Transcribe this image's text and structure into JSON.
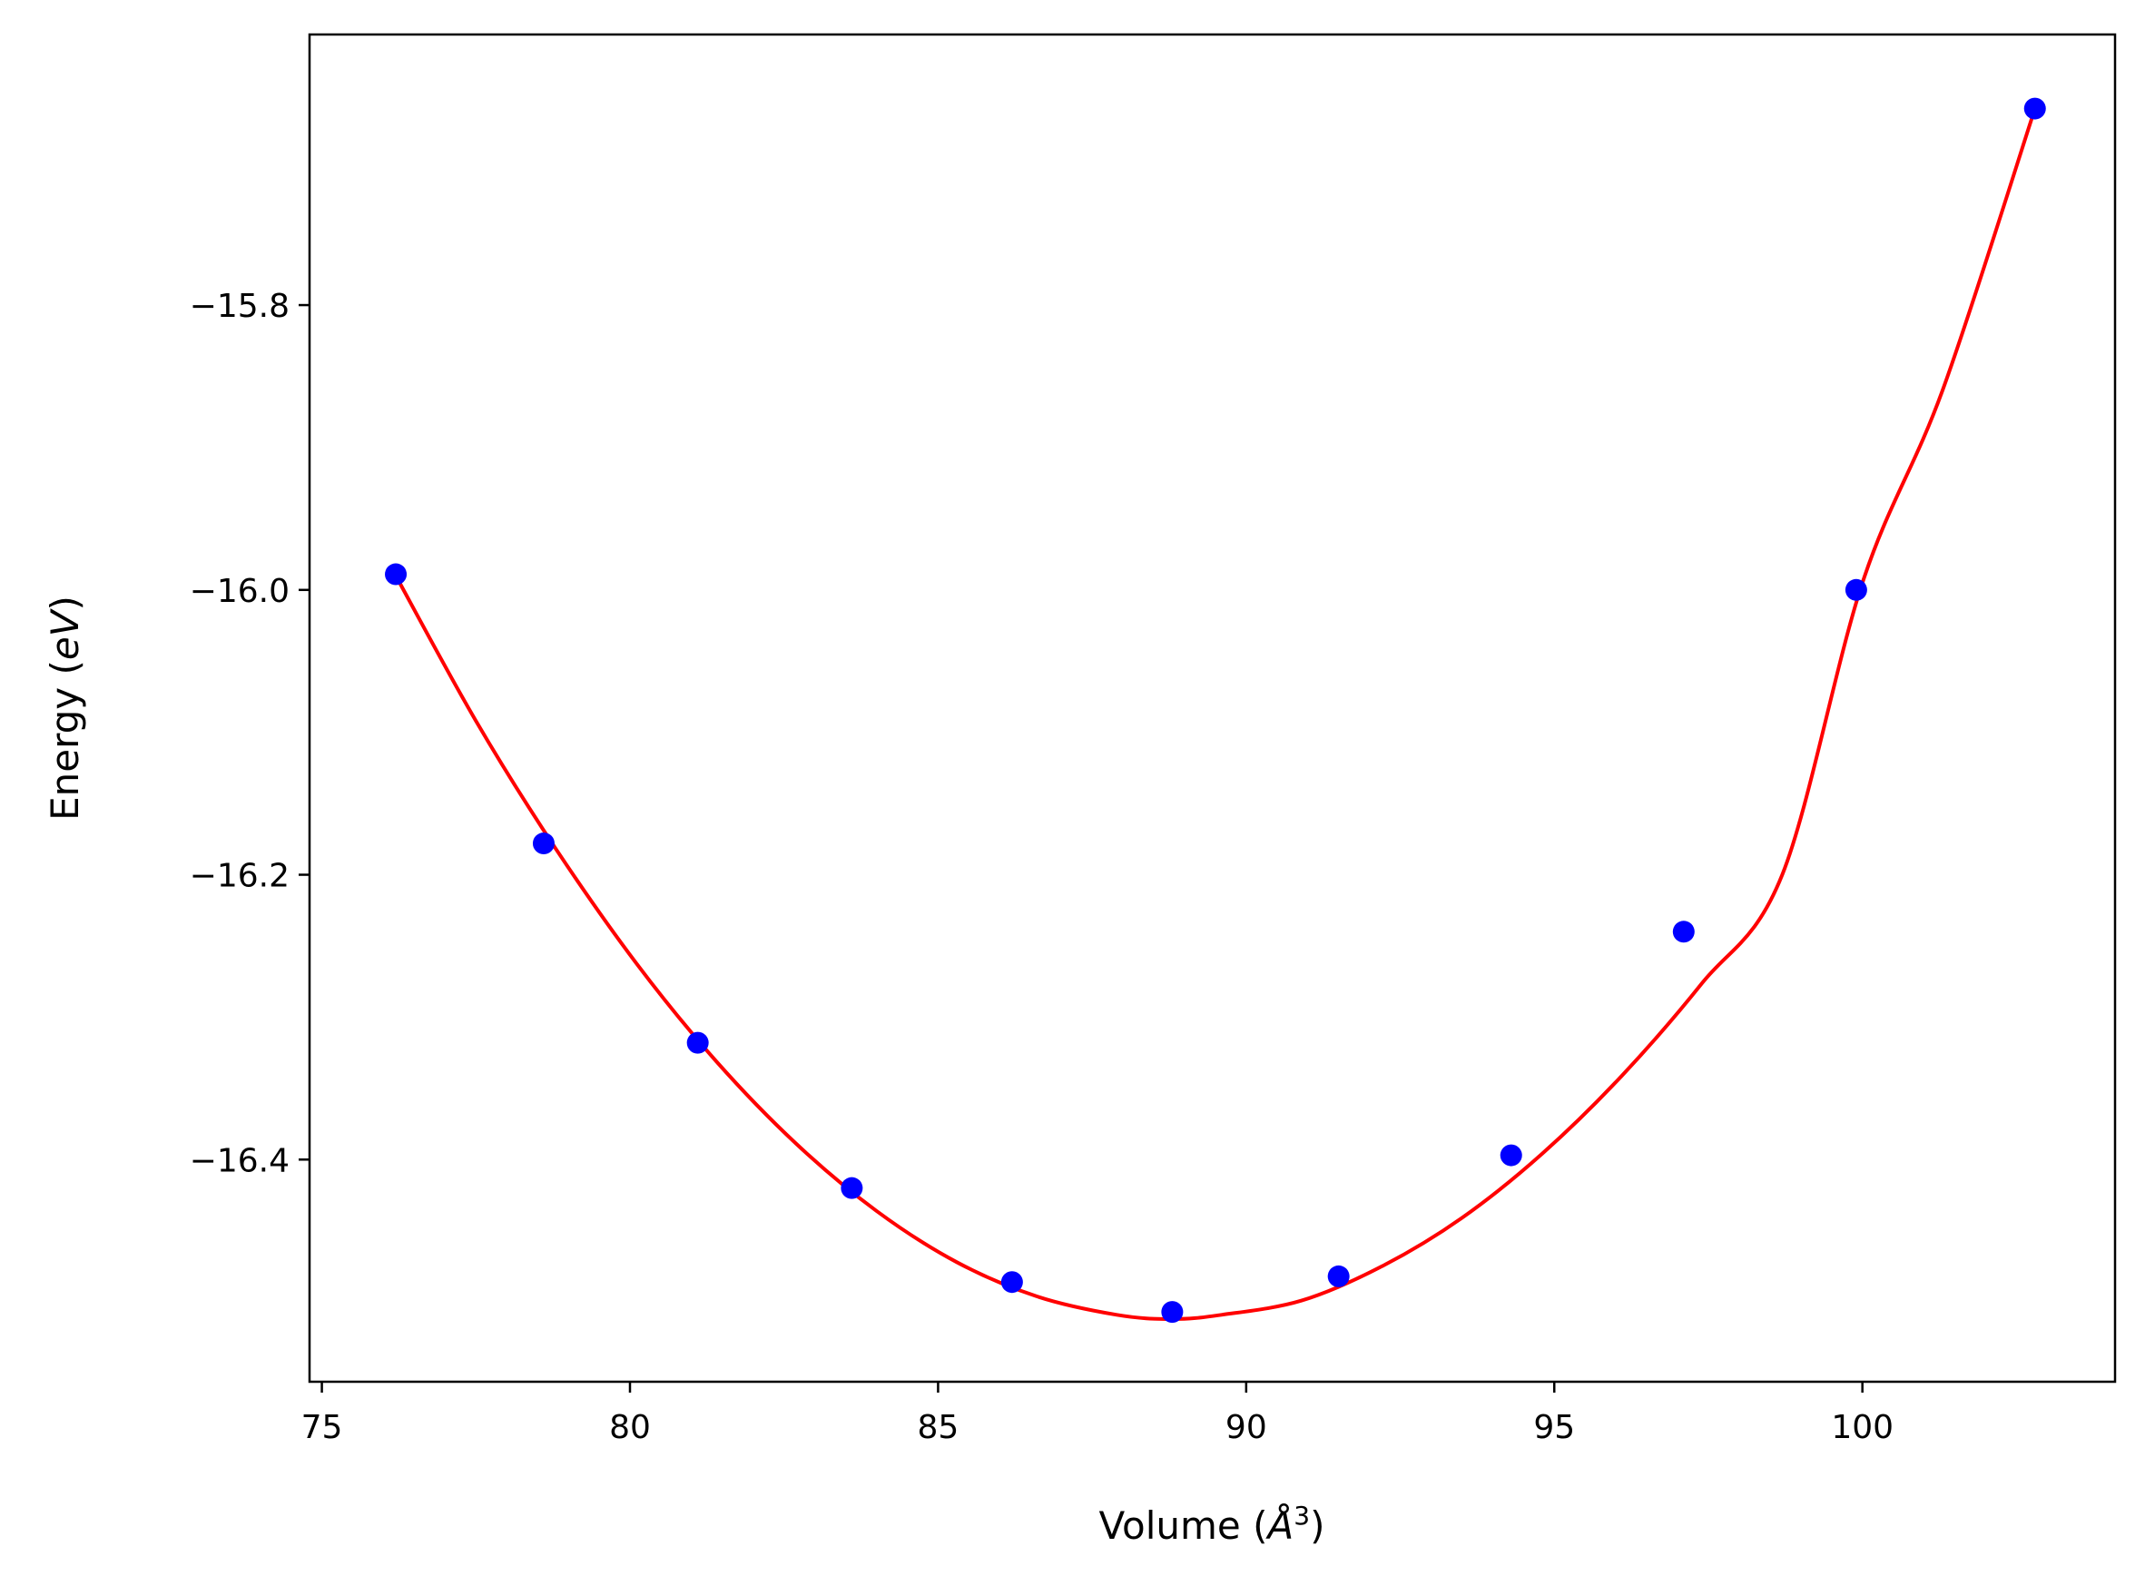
{
  "chart_data": {
    "type": "scatter",
    "xlabel": "Volume (",
    "xlabel_unit": "Å",
    "xlabel_exp": "3",
    "xlabel_close": ")",
    "ylabel_prefix": "Energy (",
    "ylabel_unit": "eV",
    "ylabel_suffix": ")",
    "xlim": [
      74.8,
      104.1
    ],
    "ylim": [
      -16.556,
      -15.61
    ],
    "xticks": [
      75,
      80,
      85,
      90,
      95,
      100
    ],
    "xtick_labels": [
      "75",
      "80",
      "85",
      "90",
      "95",
      "100"
    ],
    "yticks": [
      -15.8,
      -16.0,
      -16.2,
      -16.4
    ],
    "ytick_labels": [
      "−15.8",
      "−16.0",
      "−16.2",
      "−16.4"
    ],
    "grid": false,
    "series": [
      {
        "kind": "points",
        "color": "#0000ff",
        "x": [
          76.2,
          78.6,
          81.1,
          83.6,
          86.2,
          88.8,
          91.5,
          94.3,
          97.1,
          99.9,
          102.8
        ],
        "y": [
          -15.989,
          -16.178,
          -16.318,
          -16.42,
          -16.486,
          -16.507,
          -16.482,
          -16.397,
          -16.24,
          -16.0,
          -15.662
        ]
      },
      {
        "kind": "fit-curve",
        "color": "#ff0000",
        "x": [
          76.2,
          77.5,
          78.8,
          80.1,
          81.4,
          82.7,
          84.0,
          85.3,
          86.6,
          87.9,
          88.8,
          89.6,
          90.9,
          92.2,
          93.5,
          94.8,
          96.1,
          97.4,
          98.7,
          100.0,
          101.3,
          102.8
        ],
        "y": [
          -15.99,
          -16.092,
          -16.182,
          -16.262,
          -16.331,
          -16.389,
          -16.436,
          -16.472,
          -16.496,
          -16.509,
          -16.512,
          -16.509,
          -16.499,
          -16.475,
          -16.441,
          -16.396,
          -16.341,
          -16.276,
          -16.2,
          -15.995,
          -15.86,
          -15.662
        ]
      }
    ]
  }
}
